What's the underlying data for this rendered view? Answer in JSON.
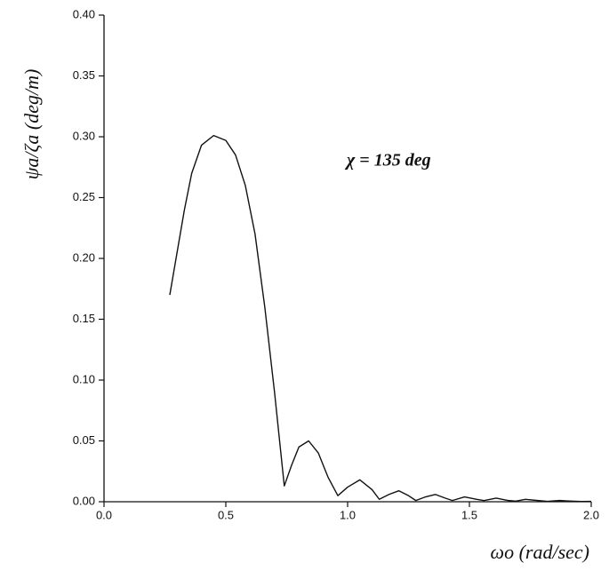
{
  "chart_data": {
    "type": "line",
    "x_label": "ωo (rad/sec)",
    "y_label": "ψa/ζa (deg/m)",
    "annotation": "χ = 135 deg",
    "xlim": [
      0,
      2
    ],
    "ylim": [
      0,
      0.4
    ],
    "xticks": [
      {
        "value": 0,
        "label": "0.0"
      },
      0.5,
      {
        "value": 1,
        "label": "1.0"
      },
      1.5,
      {
        "value": 2,
        "label": "2.0"
      }
    ],
    "yticks": [
      {
        "value": 0,
        "label": "0.00"
      },
      0.05,
      {
        "value": 0.1,
        "label": "0.10"
      },
      0.15,
      {
        "value": 0.2,
        "label": "0.20"
      },
      0.25,
      {
        "value": 0.3,
        "label": "0.30"
      },
      0.35,
      {
        "value": 0.4,
        "label": "0.40"
      }
    ],
    "color": "#111111",
    "x": [
      0.27,
      0.3,
      0.33,
      0.36,
      0.4,
      0.45,
      0.5,
      0.54,
      0.58,
      0.62,
      0.66,
      0.7,
      0.74,
      0.77,
      0.8,
      0.84,
      0.88,
      0.92,
      0.96,
      1.0,
      1.05,
      1.1,
      1.13,
      1.17,
      1.21,
      1.25,
      1.28,
      1.32,
      1.36,
      1.4,
      1.43,
      1.48,
      1.53,
      1.56,
      1.61,
      1.66,
      1.69,
      1.73,
      1.78,
      1.82,
      1.87,
      1.92,
      1.96,
      2.0
    ],
    "values": [
      0.17,
      0.205,
      0.24,
      0.27,
      0.293,
      0.301,
      0.297,
      0.285,
      0.26,
      0.22,
      0.16,
      0.09,
      0.013,
      0.03,
      0.045,
      0.05,
      0.04,
      0.02,
      0.005,
      0.012,
      0.018,
      0.01,
      0.002,
      0.006,
      0.009,
      0.005,
      0.001,
      0.004,
      0.006,
      0.003,
      0.001,
      0.004,
      0.002,
      0.001,
      0.003,
      0.001,
      0.0005,
      0.002,
      0.001,
      0.0003,
      0.001,
      0.0005,
      0.0002,
      0.0003
    ]
  }
}
